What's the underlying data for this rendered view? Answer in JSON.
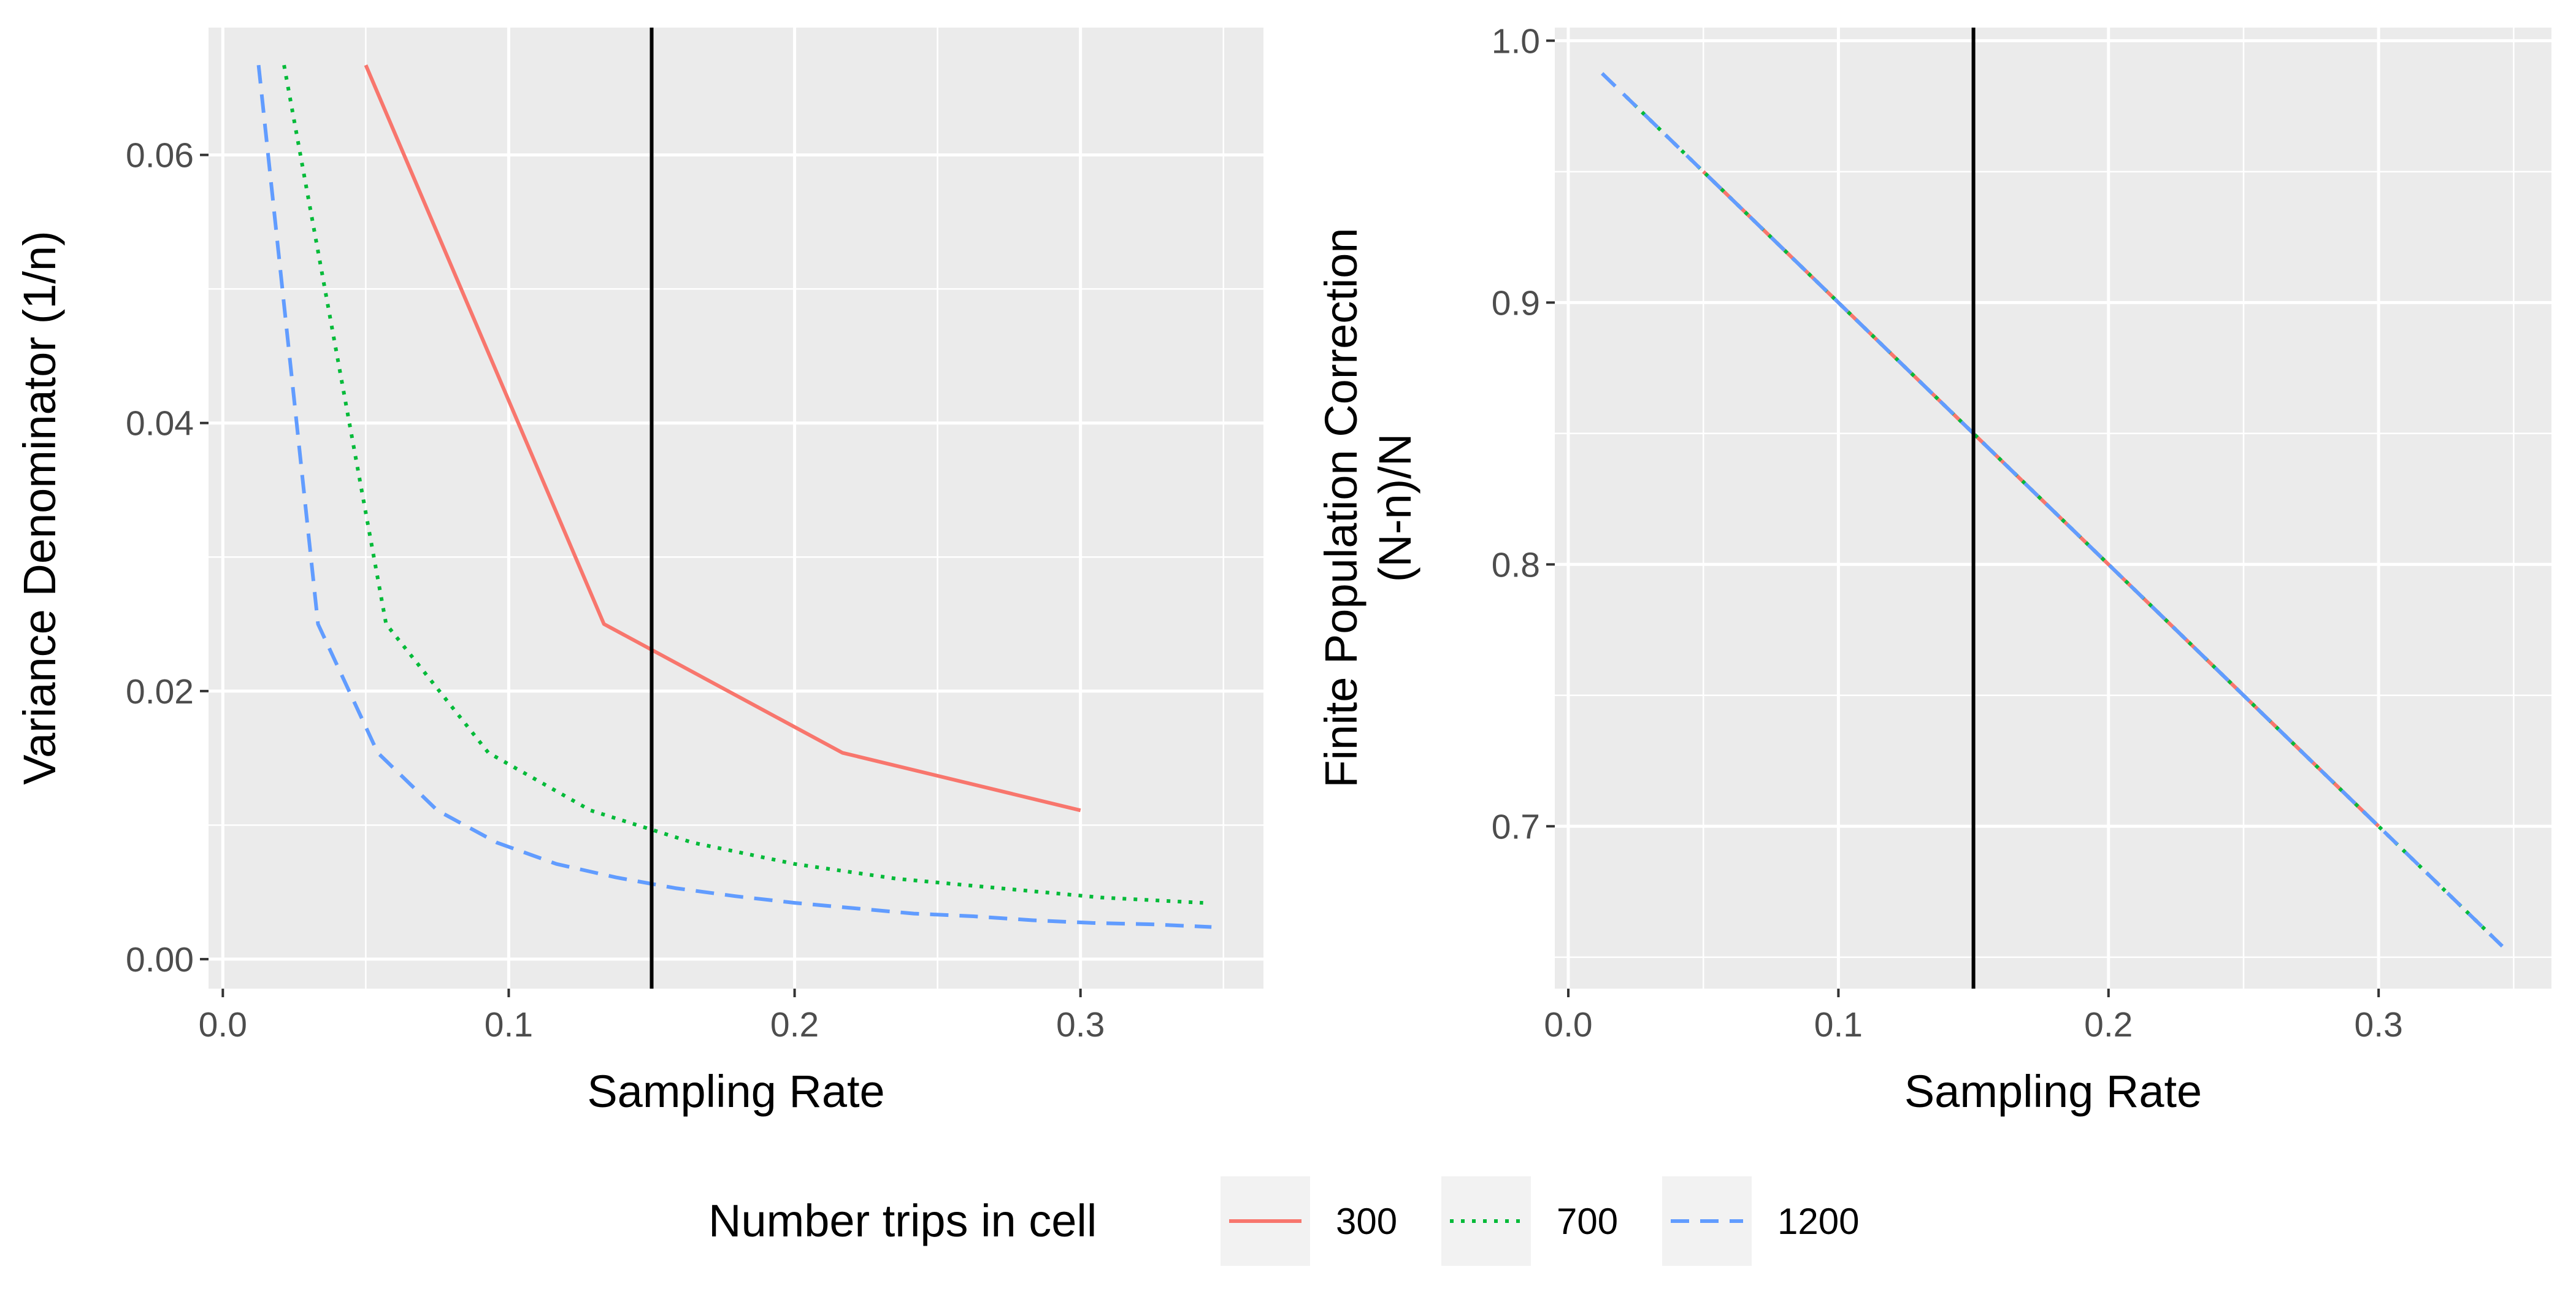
{
  "chart_data": [
    {
      "type": "line",
      "xlabel": "Sampling Rate",
      "ylabel": "Variance Denominator (1/n)",
      "xlim": [
        -0.005,
        0.364
      ],
      "ylim": [
        -0.0022,
        0.0695
      ],
      "xticks": [
        0.0,
        0.1,
        0.2,
        0.3
      ],
      "xtick_labels": [
        "0.0",
        "0.1",
        "0.2",
        "0.3"
      ],
      "yticks": [
        0.0,
        0.02,
        0.04,
        0.06
      ],
      "ytick_labels": [
        "0.00",
        "0.02",
        "0.04",
        "0.06"
      ],
      "grid": true,
      "vline": 0.15,
      "series": [
        {
          "name": "300",
          "color": "#F8766D",
          "dash": "solid",
          "x": [
            0.05,
            0.1333,
            0.2167,
            0.3
          ],
          "y": [
            0.0667,
            0.025,
            0.0154,
            0.0111
          ]
        },
        {
          "name": "700",
          "color": "#00BA38",
          "dash": "dotted",
          "x": [
            0.0214,
            0.0571,
            0.0929,
            0.1286,
            0.1643,
            0.2,
            0.2357,
            0.2714,
            0.3071,
            0.3429
          ],
          "y": [
            0.0667,
            0.025,
            0.0154,
            0.0111,
            0.0087,
            0.0071,
            0.006,
            0.0053,
            0.0046,
            0.0042
          ]
        },
        {
          "name": "1200",
          "color": "#619CFF",
          "dash": "dashed",
          "x": [
            0.0125,
            0.0333,
            0.0542,
            0.075,
            0.0958,
            0.1167,
            0.1375,
            0.1583,
            0.1792,
            0.2,
            0.2208,
            0.2417,
            0.2625,
            0.2833,
            0.3042,
            0.325,
            0.3458
          ],
          "y": [
            0.0667,
            0.025,
            0.0154,
            0.0111,
            0.0087,
            0.0071,
            0.0061,
            0.0053,
            0.0047,
            0.0042,
            0.0038,
            0.0034,
            0.0032,
            0.0029,
            0.0027,
            0.0026,
            0.0024
          ]
        }
      ]
    },
    {
      "type": "line",
      "xlabel": "Sampling Rate",
      "ylabel": [
        "Finite Population Correction",
        "(N-n)/N"
      ],
      "xlim": [
        -0.005,
        0.364
      ],
      "ylim": [
        0.638,
        1.005
      ],
      "xticks": [
        0.0,
        0.1,
        0.2,
        0.3
      ],
      "xtick_labels": [
        "0.0",
        "0.1",
        "0.2",
        "0.3"
      ],
      "yticks": [
        0.7,
        0.8,
        0.9,
        1.0
      ],
      "ytick_labels": [
        "0.7",
        "0.8",
        "0.9",
        "1.0"
      ],
      "grid": true,
      "vline": 0.15,
      "series": [
        {
          "name": "300",
          "color": "#F8766D",
          "dash": "solid",
          "x": [
            0.05,
            0.1333,
            0.2167,
            0.3
          ],
          "y": [
            0.95,
            0.8667,
            0.7833,
            0.7
          ]
        },
        {
          "name": "700",
          "color": "#00BA38",
          "dash": "dotted",
          "x": [
            0.0214,
            0.0571,
            0.0929,
            0.1286,
            0.1643,
            0.2,
            0.2357,
            0.2714,
            0.3071,
            0.3429
          ],
          "y": [
            0.9786,
            0.9429,
            0.9071,
            0.8714,
            0.8357,
            0.8,
            0.7643,
            0.7286,
            0.6929,
            0.6571
          ]
        },
        {
          "name": "1200",
          "color": "#619CFF",
          "dash": "dashed",
          "x": [
            0.0125,
            0.0333,
            0.0542,
            0.075,
            0.0958,
            0.1167,
            0.1375,
            0.1583,
            0.1792,
            0.2,
            0.2208,
            0.2417,
            0.2625,
            0.2833,
            0.3042,
            0.325,
            0.3458
          ],
          "y": [
            0.9875,
            0.9667,
            0.9458,
            0.925,
            0.9042,
            0.8833,
            0.8625,
            0.8417,
            0.8208,
            0.8,
            0.7792,
            0.7583,
            0.7375,
            0.7167,
            0.6958,
            0.675,
            0.6542
          ]
        }
      ]
    }
  ],
  "legend": {
    "title": "Number trips in cell",
    "position": "bottom",
    "items": [
      {
        "label": "300",
        "color": "#F8766D",
        "dash": "solid"
      },
      {
        "label": "700",
        "color": "#00BA38",
        "dash": "dotted"
      },
      {
        "label": "1200",
        "color": "#619CFF",
        "dash": "dashed"
      }
    ]
  }
}
